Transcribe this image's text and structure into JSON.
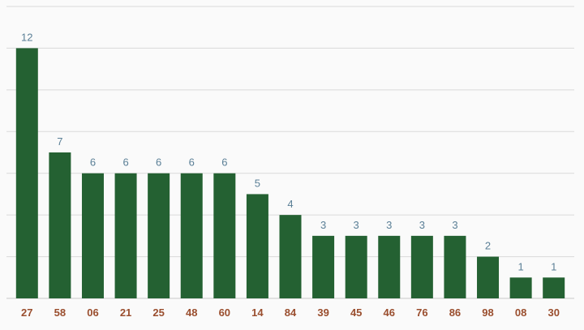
{
  "chart_data": {
    "type": "bar",
    "categories": [
      "27",
      "58",
      "06",
      "21",
      "25",
      "48",
      "60",
      "14",
      "84",
      "39",
      "45",
      "46",
      "76",
      "86",
      "98",
      "08",
      "30"
    ],
    "values": [
      12,
      7,
      6,
      6,
      6,
      6,
      6,
      5,
      4,
      3,
      3,
      3,
      3,
      3,
      2,
      1,
      1
    ],
    "title": "",
    "xlabel": "",
    "ylabel": "",
    "ylim": [
      0,
      14
    ],
    "grid": true,
    "colors": {
      "bar": "#246132",
      "value_label": "#5a7f96",
      "tick_label": "#9a4e2e",
      "grid": "#d9d9d9",
      "background": "#fafafa"
    }
  }
}
